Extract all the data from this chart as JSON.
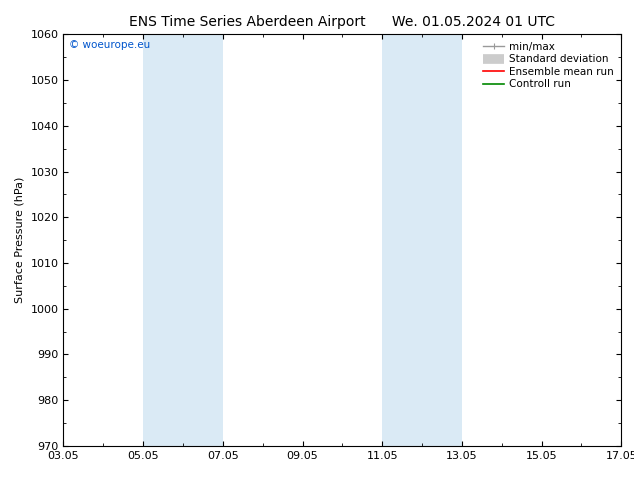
{
  "title_left": "ENS Time Series Aberdeen Airport",
  "title_right": "We. 01.05.2024 01 UTC",
  "ylabel": "Surface Pressure (hPa)",
  "ylim": [
    970,
    1060
  ],
  "yticks": [
    970,
    980,
    990,
    1000,
    1010,
    1020,
    1030,
    1040,
    1050,
    1060
  ],
  "xlim_start": 0,
  "xlim_end": 14,
  "xtick_positions": [
    0,
    2,
    4,
    6,
    8,
    10,
    12,
    14
  ],
  "xtick_labels": [
    "03.05",
    "05.05",
    "07.05",
    "09.05",
    "11.05",
    "13.05",
    "15.05",
    "17.05"
  ],
  "shaded_bands": [
    {
      "xstart": 2,
      "xend": 4,
      "color": "#daeaf5"
    },
    {
      "xstart": 8,
      "xend": 10,
      "color": "#daeaf5"
    }
  ],
  "copyright_text": "© woeurope.eu",
  "copyright_color": "#0055cc",
  "legend_items": [
    {
      "label": "min/max",
      "color": "#999999",
      "lw": 1.0,
      "style": "minmax"
    },
    {
      "label": "Standard deviation",
      "color": "#cccccc",
      "lw": 7,
      "style": "rect"
    },
    {
      "label": "Ensemble mean run",
      "color": "#ff0000",
      "lw": 1.2,
      "style": "line"
    },
    {
      "label": "Controll run",
      "color": "#008800",
      "lw": 1.2,
      "style": "line"
    }
  ],
  "background_color": "#ffffff",
  "plot_bg_color": "#ffffff",
  "title_fontsize": 10,
  "axis_label_fontsize": 8,
  "tick_fontsize": 8,
  "legend_fontsize": 7.5
}
